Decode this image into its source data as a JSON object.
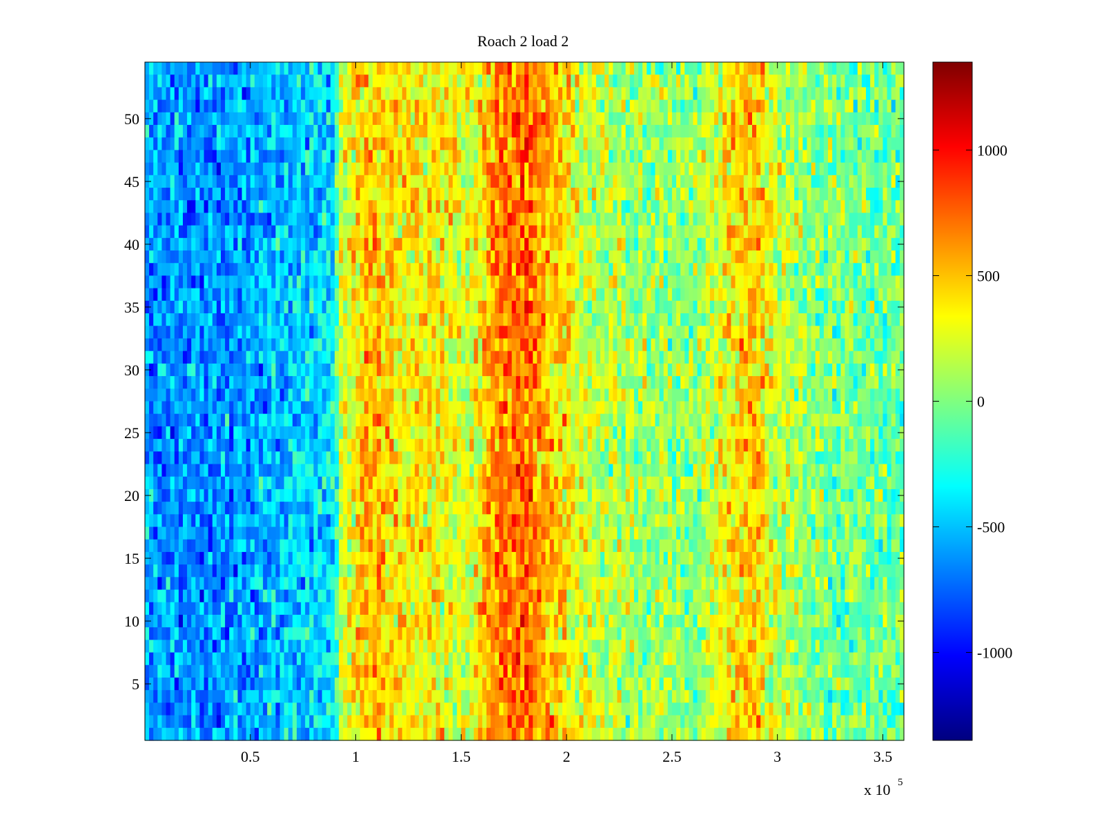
{
  "chart_data": {
    "type": "heatmap",
    "title": "Roach 2 load 2",
    "xlabel": "",
    "ylabel": "",
    "x_multiplier_label": "x 10",
    "x_multiplier_exponent": "5",
    "xlim": [
      0,
      3.6
    ],
    "ylim": [
      0.5,
      54.5
    ],
    "x_ticks": [
      {
        "value": 0.5,
        "label": "0.5"
      },
      {
        "value": 1,
        "label": "1"
      },
      {
        "value": 1.5,
        "label": "1.5"
      },
      {
        "value": 2,
        "label": "2"
      },
      {
        "value": 2.5,
        "label": "2.5"
      },
      {
        "value": 3,
        "label": "3"
      },
      {
        "value": 3.5,
        "label": "3.5"
      }
    ],
    "y_ticks": [
      {
        "value": 5,
        "label": "5"
      },
      {
        "value": 10,
        "label": "10"
      },
      {
        "value": 15,
        "label": "15"
      },
      {
        "value": 20,
        "label": "20"
      },
      {
        "value": 25,
        "label": "25"
      },
      {
        "value": 30,
        "label": "30"
      },
      {
        "value": 35,
        "label": "35"
      },
      {
        "value": 40,
        "label": "40"
      },
      {
        "value": 45,
        "label": "45"
      },
      {
        "value": 50,
        "label": "50"
      }
    ],
    "rows": 54,
    "columns": 180,
    "colormap": "jet",
    "clim": [
      -1350,
      1350
    ],
    "colorbar_ticks": [
      {
        "value": 1000,
        "label": "1000"
      },
      {
        "value": 500,
        "label": "500"
      },
      {
        "value": 0,
        "label": "0"
      },
      {
        "value": -500,
        "label": "-500"
      },
      {
        "value": -1000,
        "label": "-1000"
      }
    ],
    "column_mean_profile": [
      {
        "x": 0.0,
        "value": -600
      },
      {
        "x": 0.3,
        "value": -650
      },
      {
        "x": 0.6,
        "value": -520
      },
      {
        "x": 0.9,
        "value": -420
      },
      {
        "x": 0.92,
        "value": 150
      },
      {
        "x": 1.05,
        "value": 520
      },
      {
        "x": 1.2,
        "value": 400
      },
      {
        "x": 1.4,
        "value": 330
      },
      {
        "x": 1.55,
        "value": 220
      },
      {
        "x": 1.65,
        "value": 620
      },
      {
        "x": 1.8,
        "value": 780
      },
      {
        "x": 1.92,
        "value": 520
      },
      {
        "x": 2.1,
        "value": 180
      },
      {
        "x": 2.3,
        "value": 80
      },
      {
        "x": 2.6,
        "value": 40
      },
      {
        "x": 2.75,
        "value": 300
      },
      {
        "x": 2.88,
        "value": 520
      },
      {
        "x": 2.98,
        "value": 200
      },
      {
        "x": 3.2,
        "value": 0
      },
      {
        "x": 3.6,
        "value": -60
      }
    ],
    "noise_amplitude": 260
  }
}
